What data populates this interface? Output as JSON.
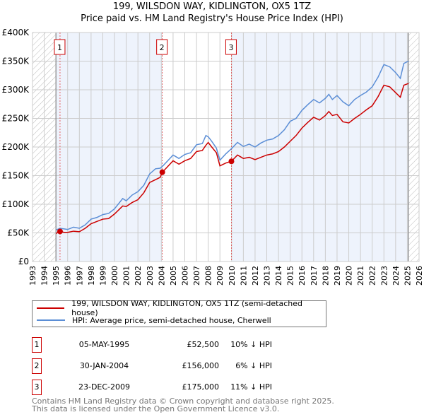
{
  "chart_data": {
    "type": "line",
    "title": "199, WILSDON WAY, KIDLINGTON, OX5 1TZ",
    "subtitle": "Price paid vs. HM Land Registry's House Price Index (HPI)",
    "xlim": [
      1993,
      2026
    ],
    "ylim": [
      0,
      400000
    ],
    "x_ticks": [
      "1993",
      "1994",
      "1995",
      "1996",
      "1997",
      "1998",
      "1999",
      "2000",
      "2001",
      "2002",
      "2003",
      "2004",
      "2005",
      "2006",
      "2007",
      "2008",
      "2009",
      "2010",
      "2011",
      "2012",
      "2013",
      "2014",
      "2015",
      "2016",
      "2017",
      "2018",
      "2019",
      "2020",
      "2021",
      "2022",
      "2023",
      "2024",
      "2025",
      "2026"
    ],
    "y_ticks": [
      {
        "v": 0,
        "label": "£0"
      },
      {
        "v": 50000,
        "label": "£50K"
      },
      {
        "v": 100000,
        "label": "£100K"
      },
      {
        "v": 150000,
        "label": "£150K"
      },
      {
        "v": 200000,
        "label": "£200K"
      },
      {
        "v": 250000,
        "label": "£250K"
      },
      {
        "v": 300000,
        "label": "£300K"
      },
      {
        "v": 350000,
        "label": "£350K"
      },
      {
        "v": 400000,
        "label": "£400K"
      }
    ],
    "grid": true,
    "data_range": [
      1995,
      2025.1
    ],
    "series": [
      {
        "name": "199, WILSDON WAY, KIDLINGTON, OX5 1TZ (semi-detached house)",
        "color": "#cc0000",
        "x": [
          1995,
          1995.35,
          1995.7,
          1996,
          1996.5,
          1997,
          1997.5,
          1998,
          1998.5,
          1999,
          1999.5,
          2000,
          2000.7,
          2001,
          2001.5,
          2002,
          2002.5,
          2003,
          2003.5,
          2003.9,
          2004.08,
          2004.5,
          2005,
          2005.5,
          2006,
          2006.5,
          2007,
          2007.5,
          2007.8,
          2008,
          2008.3,
          2008.7,
          2009,
          2009.5,
          2009.98,
          2010.5,
          2011,
          2011.5,
          2012,
          2012.5,
          2013,
          2013.5,
          2014,
          2014.5,
          2015,
          2015.5,
          2016,
          2016.5,
          2017,
          2017.5,
          2018,
          2018.3,
          2018.6,
          2019,
          2019.5,
          2020,
          2020.5,
          2021,
          2021.5,
          2022,
          2022.5,
          2023,
          2023.5,
          2024,
          2024.4,
          2024.7,
          2025.1
        ],
        "y": [
          49000,
          52500,
          51000,
          51000,
          53000,
          52000,
          58000,
          66000,
          70000,
          74000,
          75000,
          83000,
          97000,
          96000,
          103000,
          108000,
          120000,
          138000,
          143000,
          147000,
          156000,
          165000,
          176000,
          170000,
          176000,
          180000,
          192000,
          194000,
          203000,
          208000,
          200000,
          190000,
          167000,
          172000,
          175000,
          186000,
          180000,
          182000,
          178000,
          182000,
          186000,
          188000,
          192000,
          200000,
          210000,
          220000,
          233000,
          243000,
          252000,
          247000,
          255000,
          262000,
          255000,
          257000,
          244000,
          242000,
          250000,
          257000,
          265000,
          272000,
          288000,
          308000,
          305000,
          295000,
          287000,
          308000,
          311000
        ]
      },
      {
        "name": "HPI: Average price, semi-detached house, Cherwell",
        "color": "#5b8ed6",
        "x": [
          1995,
          1995.35,
          1995.7,
          1996,
          1996.5,
          1997,
          1997.5,
          1998,
          1998.5,
          1999,
          1999.5,
          2000,
          2000.7,
          2001,
          2001.5,
          2002,
          2002.5,
          2003,
          2003.5,
          2003.9,
          2004.08,
          2004.5,
          2005,
          2005.5,
          2006,
          2006.5,
          2007,
          2007.5,
          2007.8,
          2008,
          2008.3,
          2008.7,
          2009,
          2009.5,
          2009.98,
          2010.5,
          2011,
          2011.5,
          2012,
          2012.5,
          2013,
          2013.5,
          2014,
          2014.5,
          2015,
          2015.5,
          2016,
          2016.5,
          2017,
          2017.5,
          2018,
          2018.3,
          2018.6,
          2019,
          2019.5,
          2020,
          2020.5,
          2021,
          2021.5,
          2022,
          2022.5,
          2023,
          2023.5,
          2024,
          2024.4,
          2024.7,
          2025.1
        ],
        "y": [
          55000,
          58000,
          57000,
          56000,
          60000,
          58000,
          64000,
          74000,
          77000,
          82000,
          84000,
          92000,
          110000,
          106000,
          116000,
          122000,
          133000,
          153000,
          162000,
          163000,
          166000,
          175000,
          186000,
          180000,
          187000,
          190000,
          204000,
          206000,
          220000,
          218000,
          210000,
          198000,
          177000,
          188000,
          197000,
          208000,
          201000,
          205000,
          200000,
          207000,
          212000,
          214000,
          220000,
          230000,
          245000,
          250000,
          264000,
          274000,
          283000,
          277000,
          285000,
          292000,
          283000,
          290000,
          279000,
          272000,
          283000,
          290000,
          296000,
          305000,
          322000,
          344000,
          340000,
          330000,
          320000,
          346000,
          350000
        ]
      }
    ],
    "sales": [
      {
        "num": "1",
        "x": 1995.35,
        "y": 52500,
        "date": "05-MAY-1995",
        "price": "£52,500",
        "hpi": "10% ↓ HPI"
      },
      {
        "num": "2",
        "x": 2004.08,
        "y": 156000,
        "date": "30-JAN-2004",
        "price": "£156,000",
        "hpi": "6% ↓ HPI"
      },
      {
        "num": "3",
        "x": 2009.98,
        "y": 175000,
        "date": "23-DEC-2009",
        "price": "£175,000",
        "hpi": "11% ↓ HPI"
      }
    ]
  },
  "legend": {
    "red_label": "199, WILSDON WAY, KIDLINGTON, OX5 1TZ (semi-detached house)",
    "blue_label": "HPI: Average price, semi-detached house, Cherwell"
  },
  "footer": {
    "line1": "Contains HM Land Registry data © Crown copyright and database right 2025.",
    "line2": "This data is licensed under the Open Government Licence v3.0."
  }
}
